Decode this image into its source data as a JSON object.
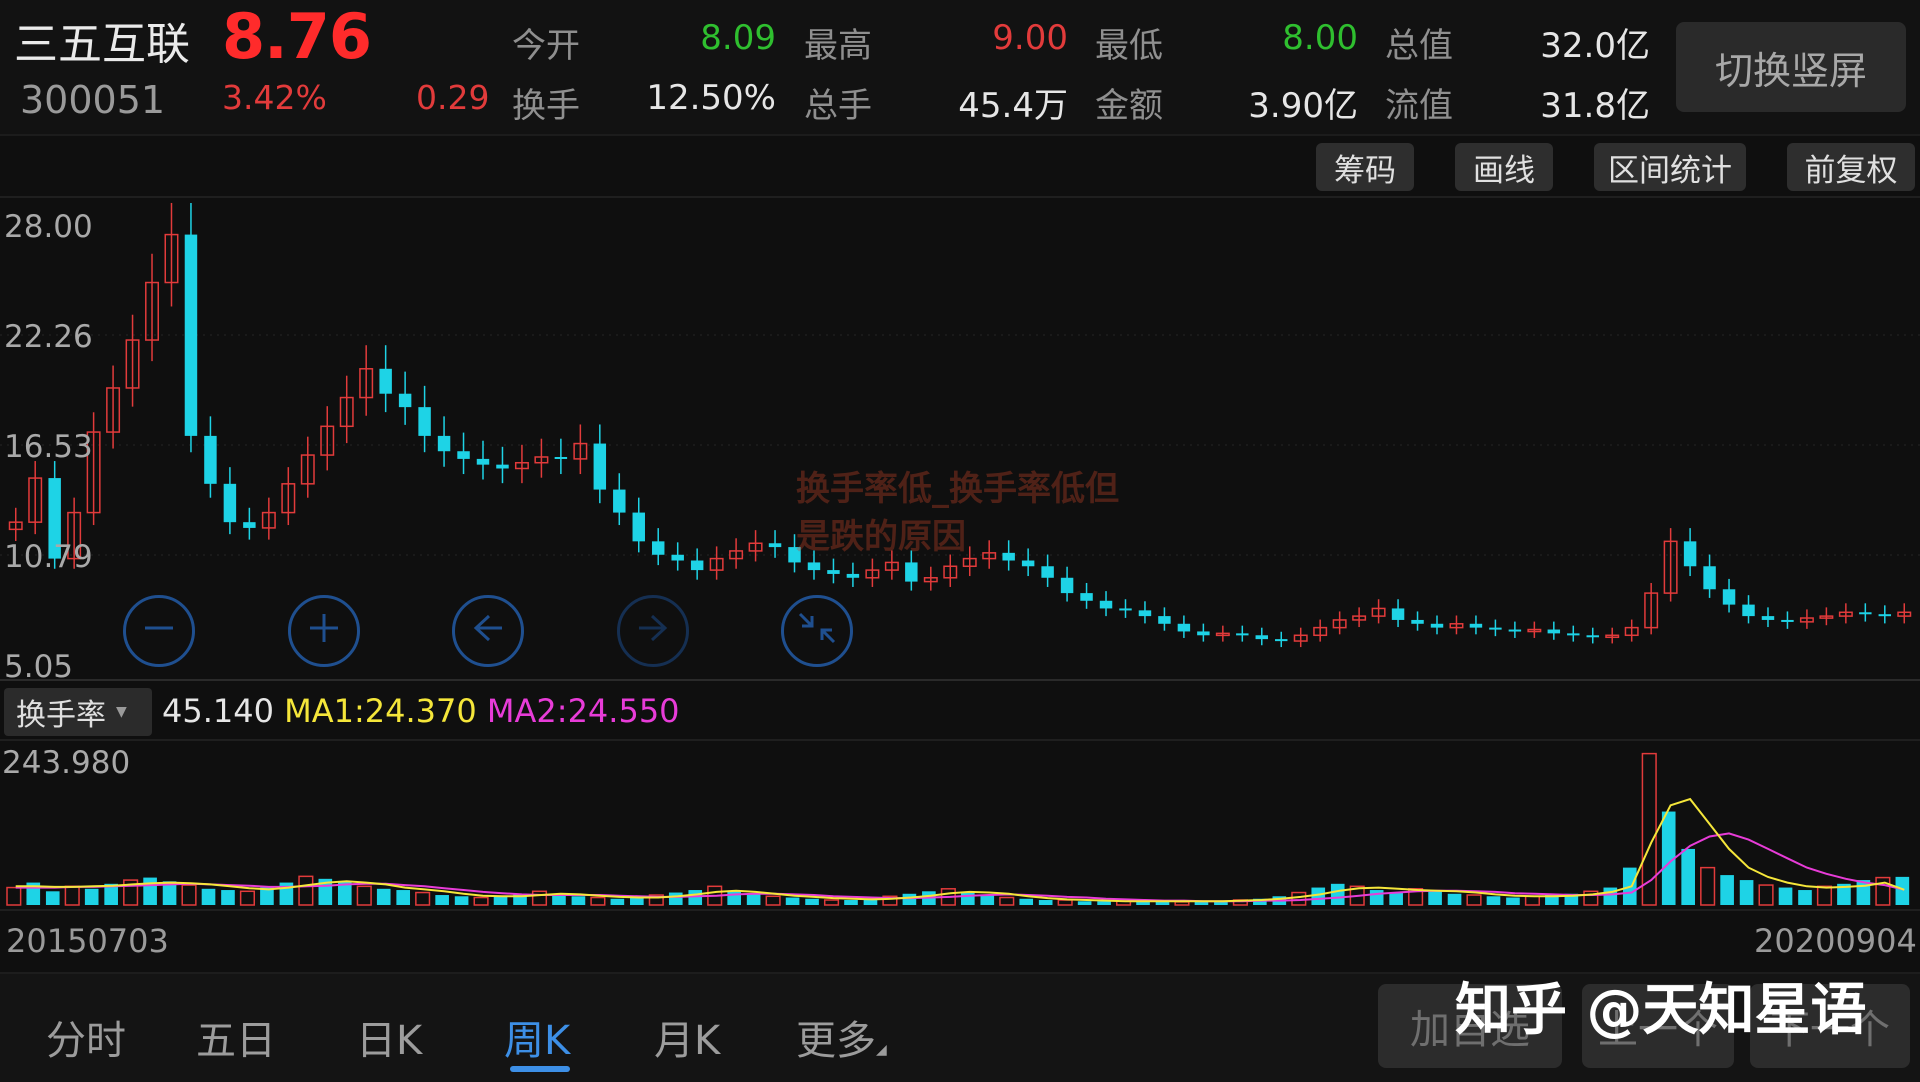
{
  "header": {
    "name": "三五互联",
    "code": "300051",
    "price": "8.76",
    "change_pct": "3.42%",
    "change": "0.29",
    "stats": [
      {
        "label": "今开",
        "value": "8.09",
        "color": "#2fbf2f"
      },
      {
        "label": "最高",
        "value": "9.00",
        "color": "#e23b3b"
      },
      {
        "label": "最低",
        "value": "8.00",
        "color": "#2fbf2f"
      },
      {
        "label": "总值",
        "value": "32.0亿",
        "color": "#e6e6e6"
      },
      {
        "label": "换手",
        "value": "12.50%",
        "color": "#e6e6e6"
      },
      {
        "label": "总手",
        "value": "45.4万",
        "color": "#e6e6e6"
      },
      {
        "label": "金额",
        "value": "3.90亿",
        "color": "#e6e6e6"
      },
      {
        "label": "流值",
        "value": "31.8亿",
        "color": "#e6e6e6"
      }
    ],
    "switch_label": "切换竖屏"
  },
  "toolbar": {
    "buttons": [
      "筹码",
      "画线",
      "区间统计",
      "前复权"
    ]
  },
  "overlay_text": [
    "换手率低_换手率低但",
    "是跌的原因"
  ],
  "indicator": {
    "name": "换手率",
    "value": "45.140",
    "ma1": "MA1:24.370",
    "ma2": "MA2:24.550",
    "ma1_color": "#f5e63a",
    "ma2_color": "#e83cd8"
  },
  "dates": {
    "start": "20150703",
    "end": "20200904"
  },
  "tabs": [
    "分时",
    "五日",
    "日K",
    "周K",
    "月K",
    "更多"
  ],
  "active_tab": "周K",
  "actions": [
    "加自选",
    "上一个",
    "下一个"
  ],
  "watermark": "知乎 @天知星语",
  "colors": {
    "up": "#e23b3b",
    "down": "#1ed3e6",
    "accent": "#3d8fe6"
  },
  "chart_data": [
    {
      "type": "candlestick",
      "title": "",
      "y_ticks": [
        "28.00",
        "22.26",
        "16.53",
        "10.79",
        "5.05"
      ],
      "ylim": [
        5.05,
        28.0
      ],
      "x_range": [
        "20150703",
        "20200904"
      ],
      "control_icons": [
        "zoom-out-icon",
        "zoom-in-icon",
        "arrow-left-icon",
        "arrow-right-icon",
        "collapse-icon"
      ],
      "close_series": [
        12.5,
        14.8,
        10.6,
        13.0,
        17.2,
        19.5,
        22.0,
        25.0,
        27.5,
        17.0,
        14.5,
        12.5,
        12.2,
        13.0,
        14.5,
        16.0,
        17.5,
        19.0,
        20.5,
        19.2,
        18.5,
        17.0,
        16.2,
        15.8,
        15.5,
        15.3,
        15.6,
        15.9,
        15.8,
        16.6,
        14.2,
        13.0,
        11.5,
        10.8,
        10.5,
        10.0,
        10.6,
        11.0,
        11.4,
        11.2,
        10.4,
        10.0,
        9.8,
        9.6,
        10.0,
        10.4,
        9.4,
        9.6,
        10.2,
        10.6,
        10.9,
        10.5,
        10.2,
        9.6,
        8.8,
        8.4,
        8.0,
        7.9,
        7.6,
        7.2,
        6.8,
        6.6,
        6.7,
        6.6,
        6.4,
        6.3,
        6.6,
        7.0,
        7.4,
        7.6,
        8.0,
        7.4,
        7.2,
        7.0,
        7.2,
        7.0,
        6.9,
        6.8,
        6.9,
        6.7,
        6.6,
        6.5,
        6.6,
        7.0,
        8.8,
        11.5,
        10.2,
        9.0,
        8.2,
        7.6,
        7.4,
        7.3,
        7.5,
        7.6,
        7.8,
        7.7,
        7.6,
        7.8
      ],
      "turnover": {
        "y_tick": "243.980",
        "last": 45.14,
        "values": [
          28,
          36,
          22,
          30,
          26,
          34,
          40,
          44,
          38,
          32,
          26,
          24,
          22,
          28,
          36,
          46,
          42,
          38,
          30,
          26,
          24,
          20,
          16,
          14,
          12,
          14,
          18,
          22,
          16,
          14,
          12,
          10,
          12,
          16,
          20,
          24,
          30,
          22,
          18,
          14,
          12,
          10,
          8,
          8,
          10,
          14,
          18,
          22,
          26,
          20,
          16,
          12,
          10,
          8,
          8,
          6,
          6,
          6,
          6,
          5,
          5,
          6,
          6,
          8,
          10,
          14,
          20,
          28,
          34,
          30,
          24,
          20,
          26,
          22,
          18,
          16,
          14,
          12,
          14,
          16,
          18,
          22,
          28,
          60,
          243,
          150,
          90,
          60,
          48,
          40,
          32,
          28,
          24,
          30,
          34,
          40,
          44,
          45.14
        ],
        "ma1": [
          30,
          30,
          29,
          29,
          30,
          31,
          33,
          35,
          36,
          35,
          33,
          30,
          27,
          25,
          28,
          32,
          36,
          38,
          36,
          33,
          28,
          25,
          22,
          18,
          15,
          14,
          14,
          16,
          18,
          17,
          15,
          13,
          12,
          12,
          14,
          17,
          21,
          23,
          21,
          18,
          15,
          13,
          11,
          10,
          9,
          10,
          12,
          15,
          19,
          21,
          20,
          18,
          14,
          11,
          9,
          8,
          7,
          6,
          6,
          6,
          6,
          6,
          6,
          7,
          8,
          10,
          13,
          17,
          23,
          27,
          28,
          26,
          24,
          23,
          22,
          20,
          17,
          15,
          14,
          14,
          15,
          17,
          21,
          30,
          100,
          160,
          170,
          130,
          90,
          60,
          45,
          36,
          30,
          28,
          29,
          31,
          36,
          24.37
        ],
        "ma2": [
          28,
          28,
          28,
          29,
          29,
          30,
          31,
          32,
          33,
          34,
          33,
          32,
          31,
          29,
          29,
          30,
          31,
          33,
          34,
          34,
          32,
          30,
          27,
          24,
          21,
          19,
          17,
          16,
          16,
          16,
          16,
          15,
          14,
          13,
          13,
          14,
          15,
          17,
          18,
          18,
          17,
          16,
          14,
          13,
          12,
          11,
          11,
          12,
          13,
          15,
          16,
          17,
          16,
          15,
          13,
          12,
          10,
          9,
          8,
          7,
          7,
          6,
          6,
          6,
          7,
          7,
          8,
          10,
          12,
          15,
          18,
          20,
          22,
          23,
          23,
          22,
          21,
          19,
          18,
          17,
          16,
          16,
          17,
          20,
          40,
          70,
          95,
          110,
          115,
          105,
          90,
          75,
          60,
          50,
          42,
          36,
          32,
          24.55
        ]
      }
    }
  ]
}
